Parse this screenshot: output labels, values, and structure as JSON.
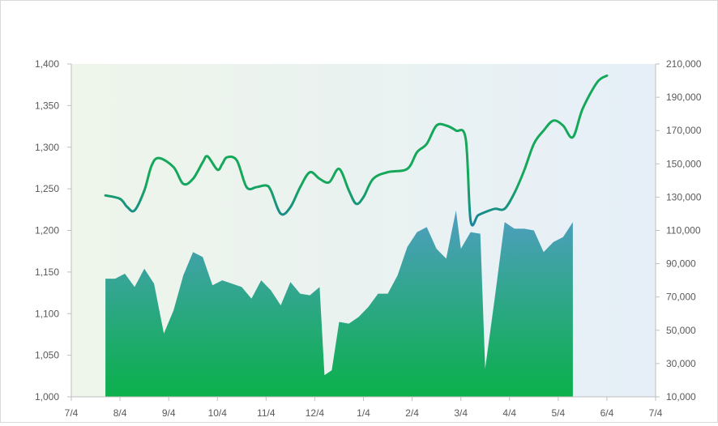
{
  "chart_data": {
    "type": "line+area",
    "title": "",
    "x_ticks": [
      "7/4",
      "8/4",
      "9/4",
      "10/4",
      "11/4",
      "12/4",
      "1/4",
      "2/4",
      "3/4",
      "4/4",
      "5/4",
      "6/4",
      "7/4"
    ],
    "y_left": {
      "range": [
        1000,
        1400
      ],
      "ticks": [
        "1,000",
        "1,050",
        "1,100",
        "1,150",
        "1,200",
        "1,250",
        "1,300",
        "1,350",
        "1,400"
      ]
    },
    "y_right": {
      "range": [
        10000,
        210000
      ],
      "ticks": [
        "10,000",
        "30,000",
        "50,000",
        "70,000",
        "90,000",
        "110,000",
        "130,000",
        "150,000",
        "170,000",
        "190,000",
        "210,000"
      ]
    },
    "series": [
      {
        "type": "line",
        "axis": "left",
        "points": [
          [
            0.7,
            1242
          ],
          [
            1.0,
            1238
          ],
          [
            1.15,
            1228
          ],
          [
            1.3,
            1224
          ],
          [
            1.5,
            1248
          ],
          [
            1.65,
            1278
          ],
          [
            1.8,
            1287
          ],
          [
            2.1,
            1276
          ],
          [
            2.3,
            1256
          ],
          [
            2.5,
            1262
          ],
          [
            2.7,
            1282
          ],
          [
            2.8,
            1289
          ],
          [
            3.0,
            1273
          ],
          [
            3.1,
            1280
          ],
          [
            3.2,
            1288
          ],
          [
            3.4,
            1284
          ],
          [
            3.6,
            1252
          ],
          [
            3.8,
            1252
          ],
          [
            4.0,
            1254
          ],
          [
            4.1,
            1248
          ],
          [
            4.3,
            1220
          ],
          [
            4.5,
            1228
          ],
          [
            4.7,
            1252
          ],
          [
            4.9,
            1270
          ],
          [
            5.1,
            1262
          ],
          [
            5.3,
            1258
          ],
          [
            5.5,
            1274
          ],
          [
            5.7,
            1248
          ],
          [
            5.85,
            1232
          ],
          [
            6.0,
            1240
          ],
          [
            6.2,
            1262
          ],
          [
            6.5,
            1270
          ],
          [
            6.9,
            1274
          ],
          [
            7.1,
            1294
          ],
          [
            7.3,
            1304
          ],
          [
            7.5,
            1326
          ],
          [
            7.7,
            1326
          ],
          [
            7.9,
            1320
          ],
          [
            8.1,
            1310
          ],
          [
            8.2,
            1212
          ],
          [
            8.35,
            1218
          ],
          [
            8.5,
            1222
          ],
          [
            8.7,
            1226
          ],
          [
            8.9,
            1226
          ],
          [
            9.1,
            1245
          ],
          [
            9.3,
            1272
          ],
          [
            9.5,
            1304
          ],
          [
            9.7,
            1320
          ],
          [
            9.9,
            1332
          ],
          [
            10.1,
            1326
          ],
          [
            10.3,
            1312
          ],
          [
            10.5,
            1346
          ],
          [
            10.8,
            1378
          ],
          [
            11.0,
            1386
          ]
        ]
      },
      {
        "type": "area",
        "axis": "right",
        "points": [
          [
            0.7,
            81000
          ],
          [
            0.9,
            81000
          ],
          [
            1.1,
            84000
          ],
          [
            1.3,
            76000
          ],
          [
            1.5,
            87000
          ],
          [
            1.7,
            78000
          ],
          [
            1.9,
            48000
          ],
          [
            2.1,
            62000
          ],
          [
            2.3,
            83000
          ],
          [
            2.5,
            97000
          ],
          [
            2.7,
            94000
          ],
          [
            2.9,
            77000
          ],
          [
            3.1,
            80000
          ],
          [
            3.3,
            78000
          ],
          [
            3.5,
            76000
          ],
          [
            3.7,
            69000
          ],
          [
            3.9,
            80000
          ],
          [
            4.1,
            74000
          ],
          [
            4.3,
            65000
          ],
          [
            4.5,
            79000
          ],
          [
            4.7,
            72000
          ],
          [
            4.9,
            71000
          ],
          [
            5.1,
            76000
          ],
          [
            5.2,
            23000
          ],
          [
            5.35,
            26000
          ],
          [
            5.5,
            55000
          ],
          [
            5.7,
            54000
          ],
          [
            5.9,
            58000
          ],
          [
            6.1,
            64000
          ],
          [
            6.3,
            72000
          ],
          [
            6.5,
            72000
          ],
          [
            6.7,
            83000
          ],
          [
            6.9,
            100000
          ],
          [
            7.1,
            109000
          ],
          [
            7.3,
            112000
          ],
          [
            7.5,
            99000
          ],
          [
            7.7,
            93000
          ],
          [
            7.9,
            122000
          ],
          [
            8.0,
            99000
          ],
          [
            8.2,
            109000
          ],
          [
            8.4,
            108000
          ],
          [
            8.5,
            27000
          ],
          [
            8.7,
            70000
          ],
          [
            8.9,
            115000
          ],
          [
            9.1,
            111000
          ],
          [
            9.3,
            111000
          ],
          [
            9.5,
            110000
          ],
          [
            9.7,
            97000
          ],
          [
            9.9,
            103000
          ],
          [
            10.1,
            106000
          ],
          [
            10.3,
            115000
          ]
        ]
      }
    ],
    "colors": {
      "line_blue": "#1a72b8",
      "line_green": "#16a85a",
      "area_top": "#5b9bd5",
      "area_bottom": "#0ab04a",
      "plot_bg_left": "#eef5ea",
      "plot_bg_right": "#e6eff8"
    },
    "legend": "none",
    "grid": false
  }
}
